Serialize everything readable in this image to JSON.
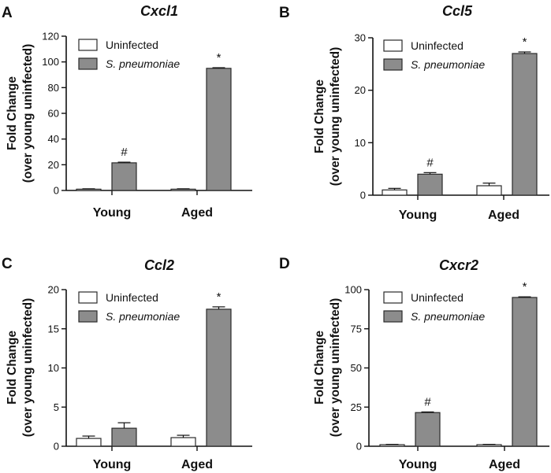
{
  "colors": {
    "uninfected": "#ffffff",
    "infected": "#8c8c8c",
    "stroke": "#2a2a2a"
  },
  "chart_data": [
    {
      "panel": "A",
      "type": "bar",
      "title": "Cxcl1",
      "ylabel_line1": "Fold Change",
      "ylabel_line2": "(over young uninfected)",
      "ylim": [
        0,
        120
      ],
      "yticks": [
        0,
        20,
        40,
        60,
        80,
        100,
        120
      ],
      "categories": [
        "Young",
        "Aged"
      ],
      "series": [
        {
          "name": "Uninfected",
          "values": [
            1.0,
            1.0
          ],
          "errors": [
            0.3,
            0.3
          ]
        },
        {
          "name": "S. pneumoniae",
          "values": [
            21.5,
            95.0
          ],
          "errors": [
            0.5,
            0.5
          ]
        }
      ],
      "annotations": [
        {
          "series": 1,
          "category": 0,
          "text": "#"
        },
        {
          "series": 1,
          "category": 1,
          "text": "*"
        }
      ],
      "legend": "top-left"
    },
    {
      "panel": "B",
      "type": "bar",
      "title": "Ccl5",
      "ylabel_line1": "Fold Change",
      "ylabel_line2": "(over young uninfected)",
      "ylim": [
        0,
        30
      ],
      "yticks": [
        0,
        10,
        20,
        30
      ],
      "categories": [
        "Young",
        "Aged"
      ],
      "series": [
        {
          "name": "Uninfected",
          "values": [
            1.0,
            1.8
          ],
          "errors": [
            0.3,
            0.5
          ]
        },
        {
          "name": "S. pneumoniae",
          "values": [
            4.0,
            27.0
          ],
          "errors": [
            0.3,
            0.3
          ]
        }
      ],
      "annotations": [
        {
          "series": 1,
          "category": 0,
          "text": "#"
        },
        {
          "series": 1,
          "category": 1,
          "text": "*"
        }
      ],
      "legend": "top-left"
    },
    {
      "panel": "C",
      "type": "bar",
      "title": "Ccl2",
      "ylabel_line1": "Fold Change",
      "ylabel_line2": "(over young uninfected)",
      "ylim": [
        0,
        20
      ],
      "yticks": [
        0,
        5,
        10,
        15,
        20
      ],
      "categories": [
        "Young",
        "Aged"
      ],
      "series": [
        {
          "name": "Uninfected",
          "values": [
            1.0,
            1.1
          ],
          "errors": [
            0.3,
            0.3
          ]
        },
        {
          "name": "S. pneumoniae",
          "values": [
            2.3,
            17.5
          ],
          "errors": [
            0.7,
            0.3
          ]
        }
      ],
      "annotations": [
        {
          "series": 1,
          "category": 1,
          "text": "*"
        }
      ],
      "legend": "top-left"
    },
    {
      "panel": "D",
      "type": "bar",
      "title": "Cxcr2",
      "ylabel_line1": "Fold Change",
      "ylabel_line2": "(over young uninfected)",
      "ylim": [
        0,
        100
      ],
      "yticks": [
        0,
        25,
        50,
        75,
        100
      ],
      "categories": [
        "Young",
        "Aged"
      ],
      "series": [
        {
          "name": "Uninfected",
          "values": [
            1.0,
            1.0
          ],
          "errors": [
            0.2,
            0.2
          ]
        },
        {
          "name": "S. pneumoniae",
          "values": [
            21.5,
            95.0
          ],
          "errors": [
            0.4,
            0.4
          ]
        }
      ],
      "annotations": [
        {
          "series": 1,
          "category": 0,
          "text": "#"
        },
        {
          "series": 1,
          "category": 1,
          "text": "*"
        }
      ],
      "legend": "top-left"
    }
  ]
}
